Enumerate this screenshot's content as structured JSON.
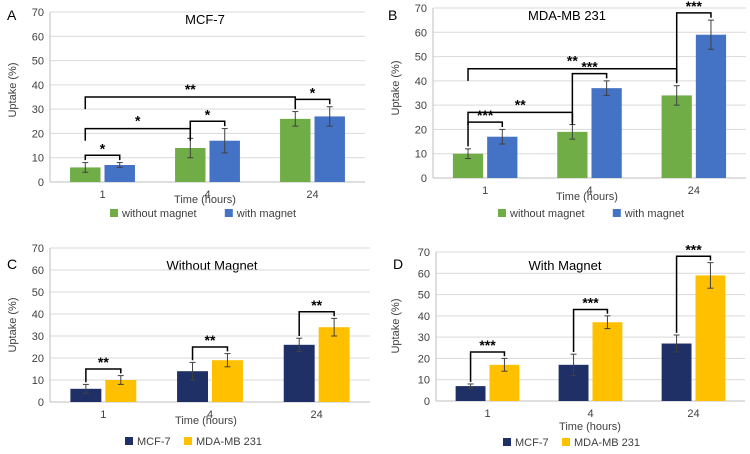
{
  "colors": {
    "green": "#70ad47",
    "blue": "#4472c4",
    "navy": "#1f3066",
    "gold": "#ffc000",
    "grid": "#d9d9d9",
    "axis": "#bfbfbf"
  },
  "chart_data": [
    {
      "panel": "A",
      "type": "bar",
      "title": "MCF-7",
      "xlabel": "Time (hours)",
      "ylabel": "Uptake (%)",
      "ylim": [
        0,
        70
      ],
      "yticks": [
        0,
        10,
        20,
        30,
        40,
        50,
        60,
        70
      ],
      "grid": true,
      "legend": "bottom",
      "categories": [
        "1",
        "4",
        "24"
      ],
      "series": [
        {
          "name": "without magnet",
          "color": "#70ad47",
          "values": [
            6,
            14,
            26
          ],
          "errors": [
            2,
            4,
            3
          ]
        },
        {
          "name": "with magnet",
          "color": "#4472c4",
          "values": [
            7,
            17,
            27
          ],
          "errors": [
            1,
            5,
            4
          ]
        }
      ],
      "annotations": [
        {
          "label": "*",
          "type": "pair",
          "category": 0
        },
        {
          "label": "*",
          "type": "pair",
          "category": 1
        },
        {
          "label": "*",
          "type": "pair",
          "category": 2
        },
        {
          "label": "*",
          "type": "span",
          "from": 0,
          "to": 1,
          "level": 22
        },
        {
          "label": "**",
          "type": "span",
          "from": 0,
          "to": 2,
          "level": 35
        }
      ]
    },
    {
      "panel": "B",
      "type": "bar",
      "title": "MDA-MB 231",
      "xlabel": "Time (hours)",
      "ylabel": "Uptake (%)",
      "ylim": [
        0,
        70
      ],
      "yticks": [
        0,
        10,
        20,
        30,
        40,
        50,
        60,
        70
      ],
      "grid": true,
      "legend": "bottom",
      "categories": [
        "1",
        "4",
        "24"
      ],
      "series": [
        {
          "name": "without magnet",
          "color": "#70ad47",
          "values": [
            10,
            19,
            34
          ],
          "errors": [
            2,
            3,
            4
          ]
        },
        {
          "name": "with magnet",
          "color": "#4472c4",
          "values": [
            17,
            37,
            59
          ],
          "errors": [
            3,
            3,
            6
          ]
        }
      ],
      "annotations": [
        {
          "label": "***",
          "type": "pair",
          "category": 0
        },
        {
          "label": "***",
          "type": "pair",
          "category": 1
        },
        {
          "label": "***",
          "type": "pair",
          "category": 2
        },
        {
          "label": "**",
          "type": "span",
          "from": 0,
          "to": 1,
          "level": 27
        },
        {
          "label": "**",
          "type": "span",
          "from": 0,
          "to": 2,
          "level": 45
        }
      ]
    },
    {
      "panel": "C",
      "type": "bar",
      "title": "Without Magnet",
      "xlabel": "Time (hours)",
      "ylabel": "Uptake (%)",
      "ylim": [
        0,
        70
      ],
      "yticks": [
        0,
        10,
        20,
        30,
        40,
        50,
        60,
        70
      ],
      "grid": true,
      "legend": "bottom",
      "categories": [
        "1",
        "4",
        "24"
      ],
      "series": [
        {
          "name": "MCF-7",
          "color": "#1f3066",
          "values": [
            6,
            14,
            26
          ],
          "errors": [
            2,
            4,
            3
          ]
        },
        {
          "name": "MDA-MB 231",
          "color": "#ffc000",
          "values": [
            10,
            19,
            34
          ],
          "errors": [
            2,
            3,
            4
          ]
        }
      ],
      "annotations": [
        {
          "label": "**",
          "type": "pair",
          "category": 0
        },
        {
          "label": "**",
          "type": "pair",
          "category": 1
        },
        {
          "label": "**",
          "type": "pair",
          "category": 2
        }
      ]
    },
    {
      "panel": "D",
      "type": "bar",
      "title": "With Magnet",
      "xlabel": "Time (hours)",
      "ylabel": "Uptake (%)",
      "ylim": [
        0,
        70
      ],
      "yticks": [
        0,
        10,
        20,
        30,
        40,
        50,
        60,
        70
      ],
      "grid": true,
      "legend": "bottom",
      "categories": [
        "1",
        "4",
        "24"
      ],
      "series": [
        {
          "name": "MCF-7",
          "color": "#1f3066",
          "values": [
            7,
            17,
            27
          ],
          "errors": [
            1,
            5,
            4
          ]
        },
        {
          "name": "MDA-MB 231",
          "color": "#ffc000",
          "values": [
            17,
            37,
            59
          ],
          "errors": [
            3,
            3,
            6
          ]
        }
      ],
      "annotations": [
        {
          "label": "***",
          "type": "pair",
          "category": 0
        },
        {
          "label": "***",
          "type": "pair",
          "category": 1
        },
        {
          "label": "***",
          "type": "pair",
          "category": 2
        }
      ]
    }
  ]
}
